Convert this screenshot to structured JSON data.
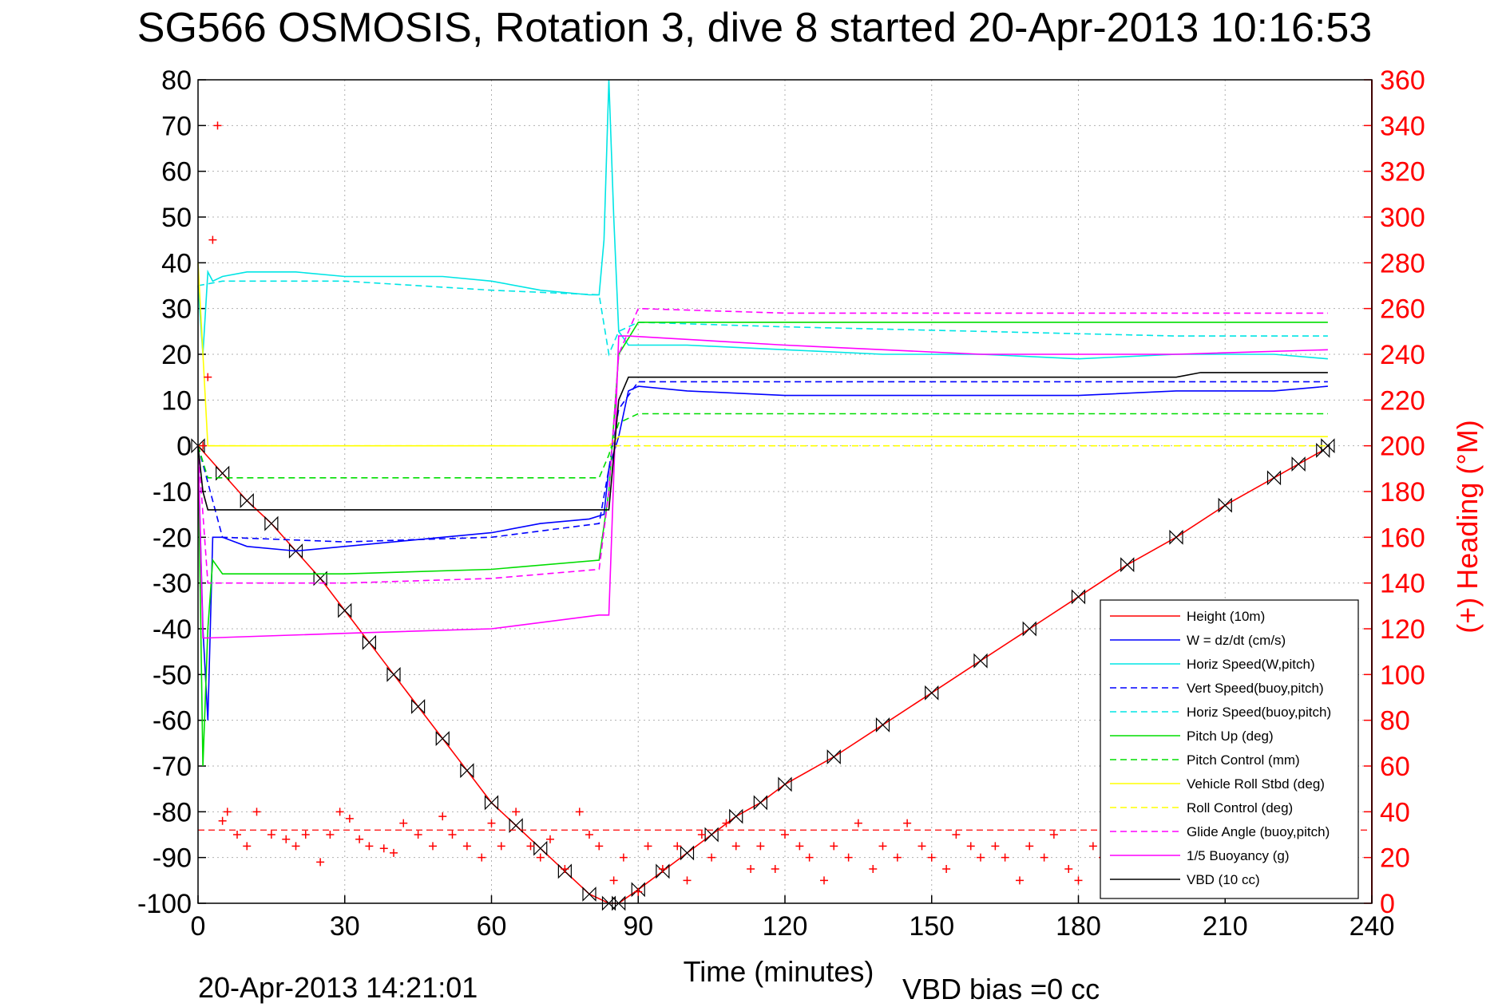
{
  "chart_data": {
    "type": "line",
    "title": "SG566 OSMOSIS, Rotation 3, dive 8 started 20-Apr-2013 10:16:53",
    "xlabel": "Time (minutes)",
    "ylabel_right": "(+) Heading (°M)",
    "xlim": [
      0,
      240
    ],
    "ylim": [
      -100,
      80
    ],
    "ylim_right": [
      0,
      360
    ],
    "x_ticks": [
      "0",
      "30",
      "60",
      "90",
      "120",
      "150",
      "180",
      "210",
      "240"
    ],
    "y_ticks": [
      "80",
      "70",
      "60",
      "50",
      "40",
      "30",
      "20",
      "10",
      "0",
      "-10",
      "-20",
      "-30",
      "-40",
      "-50",
      "-60",
      "-70",
      "-80",
      "-90",
      "-100"
    ],
    "y_ticks_right": [
      "360",
      "340",
      "320",
      "300",
      "280",
      "260",
      "240",
      "220",
      "200",
      "180",
      "160",
      "140",
      "120",
      "100",
      "80",
      "60",
      "40",
      "20",
      "0"
    ],
    "grid": true,
    "legend_position": "bottom-right",
    "series": [
      {
        "name": "Height (10m)",
        "color": "#ff0000",
        "style": "solid",
        "marker": "triangles",
        "x": [
          0,
          5,
          10,
          15,
          20,
          25,
          30,
          35,
          40,
          45,
          50,
          55,
          60,
          65,
          70,
          75,
          80,
          84,
          86,
          90,
          95,
          100,
          105,
          110,
          115,
          120,
          130,
          140,
          150,
          160,
          170,
          180,
          190,
          200,
          210,
          220,
          225,
          230,
          231
        ],
        "values": [
          0,
          -6,
          -12,
          -17,
          -23,
          -29,
          -36,
          -43,
          -50,
          -57,
          -64,
          -71,
          -78,
          -83,
          -88,
          -93,
          -98,
          -100,
          -100,
          -97,
          -93,
          -89,
          -85,
          -81,
          -78,
          -74,
          -68,
          -61,
          -54,
          -47,
          -40,
          -33,
          -26,
          -20,
          -13,
          -7,
          -4,
          -1,
          0
        ]
      },
      {
        "name": "W = dz/dt (cm/s)",
        "color": "#0000ff",
        "style": "solid",
        "x": [
          0,
          1,
          2,
          3,
          5,
          10,
          20,
          30,
          40,
          50,
          60,
          70,
          80,
          83,
          84,
          86,
          88,
          90,
          100,
          120,
          140,
          160,
          180,
          200,
          220,
          231
        ],
        "values": [
          0,
          -40,
          -60,
          -20,
          -20,
          -22,
          -23,
          -22,
          -21,
          -20,
          -19,
          -17,
          -16,
          -15,
          -5,
          2,
          12,
          13,
          12,
          11,
          11,
          11,
          11,
          12,
          12,
          13
        ]
      },
      {
        "name": "Horiz Speed(W,pitch)",
        "color": "#00e5e5",
        "style": "solid",
        "x": [
          0,
          1,
          2,
          3,
          5,
          10,
          20,
          30,
          40,
          50,
          60,
          70,
          80,
          82,
          83,
          84,
          85,
          86,
          88,
          90,
          100,
          120,
          140,
          160,
          180,
          200,
          220,
          231
        ],
        "values": [
          35,
          20,
          38,
          36,
          37,
          38,
          38,
          37,
          37,
          37,
          36,
          34,
          33,
          33,
          45,
          80,
          50,
          25,
          22,
          22,
          22,
          21,
          20,
          20,
          19,
          20,
          20,
          19
        ]
      },
      {
        "name": "Vert Speed(buoy,pitch)",
        "color": "#0000ff",
        "style": "dashed",
        "x": [
          0,
          5,
          30,
          60,
          82,
          84,
          86,
          90,
          120,
          160,
          200,
          231
        ],
        "values": [
          0,
          -20,
          -21,
          -20,
          -17,
          -5,
          8,
          14,
          14,
          14,
          14,
          14
        ]
      },
      {
        "name": "Horiz Speed(buoy,pitch)",
        "color": "#00e5e5",
        "style": "dashed",
        "x": [
          0,
          5,
          30,
          60,
          82,
          84,
          86,
          90,
          120,
          160,
          200,
          231
        ],
        "values": [
          35,
          36,
          36,
          34,
          33,
          20,
          25,
          27,
          26,
          25,
          24,
          24
        ]
      },
      {
        "name": "Pitch Up (deg)",
        "color": "#00dd00",
        "style": "solid",
        "x": [
          0,
          1,
          2,
          3,
          5,
          10,
          30,
          60,
          82,
          84,
          86,
          90,
          120,
          160,
          200,
          231
        ],
        "values": [
          0,
          -70,
          -40,
          -25,
          -28,
          -28,
          -28,
          -27,
          -25,
          -10,
          20,
          27,
          27,
          27,
          27,
          27
        ]
      },
      {
        "name": "Pitch Control (mm)",
        "color": "#00dd00",
        "style": "dashed",
        "x": [
          0,
          2,
          5,
          30,
          60,
          82,
          84,
          86,
          90,
          120,
          160,
          200,
          231
        ],
        "values": [
          0,
          -7,
          -7,
          -7,
          -7,
          -7,
          -2,
          5,
          7,
          7,
          7,
          7,
          7
        ]
      },
      {
        "name": "Vehicle Roll Stbd (deg)",
        "color": "#ffff00",
        "style": "solid",
        "x": [
          0,
          2,
          4,
          20,
          40,
          60,
          80,
          84,
          86,
          90,
          120,
          160,
          200,
          231
        ],
        "values": [
          40,
          0,
          0,
          0,
          0,
          0,
          0,
          0,
          2,
          2,
          2,
          2,
          2,
          2
        ]
      },
      {
        "name": "Roll Control (deg)",
        "color": "#ffff00",
        "style": "dashed",
        "x": [
          0,
          2,
          82,
          84,
          231
        ],
        "values": [
          0,
          0,
          0,
          0,
          0
        ]
      },
      {
        "name": "Glide Angle (buoy,pitch)",
        "color": "#ff00ff",
        "style": "dashed",
        "x": [
          0,
          2,
          5,
          30,
          60,
          82,
          84,
          86,
          90,
          120,
          160,
          200,
          231
        ],
        "values": [
          0,
          -30,
          -30,
          -30,
          -29,
          -27,
          -10,
          20,
          30,
          29,
          29,
          29,
          29
        ]
      },
      {
        "name": "1/5 Buoyancy (g)",
        "color": "#ff00ff",
        "style": "solid",
        "x": [
          0,
          1,
          2,
          30,
          60,
          82,
          84,
          86,
          88,
          120,
          160,
          200,
          231
        ],
        "values": [
          0,
          -42,
          -42,
          -41,
          -40,
          -37,
          -37,
          24,
          24,
          22,
          20,
          20,
          21
        ]
      },
      {
        "name": "VBD (10 cc)",
        "color": "#000000",
        "style": "solid",
        "x": [
          0,
          1,
          2,
          82,
          84,
          86,
          88,
          120,
          160,
          200,
          205,
          231
        ],
        "values": [
          0,
          -10,
          -14,
          -14,
          -14,
          10,
          15,
          15,
          15,
          15,
          16,
          16
        ]
      }
    ],
    "heading": {
      "axis": "right",
      "color": "#ff0000",
      "marker": "+",
      "x": [
        1,
        2,
        3,
        4,
        5,
        6,
        8,
        10,
        12,
        15,
        18,
        20,
        22,
        25,
        27,
        29,
        31,
        33,
        35,
        38,
        40,
        42,
        45,
        48,
        50,
        52,
        55,
        58,
        60,
        62,
        65,
        68,
        70,
        72,
        75,
        78,
        80,
        82,
        85,
        87,
        90,
        92,
        95,
        98,
        100,
        103,
        105,
        108,
        110,
        113,
        115,
        118,
        120,
        123,
        125,
        128,
        130,
        133,
        135,
        138,
        140,
        143,
        145,
        148,
        150,
        153,
        155,
        158,
        160,
        163,
        165,
        168,
        170,
        173,
        175,
        178,
        180,
        183,
        185,
        188,
        190,
        193,
        195,
        198,
        200,
        203,
        205,
        208,
        210,
        213,
        215,
        218,
        220,
        223,
        225,
        228,
        230
      ],
      "values": [
        200,
        230,
        290,
        340,
        36,
        40,
        30,
        25,
        40,
        30,
        28,
        25,
        30,
        18,
        30,
        40,
        37,
        28,
        25,
        24,
        22,
        35,
        30,
        25,
        38,
        30,
        25,
        20,
        35,
        25,
        40,
        25,
        20,
        28,
        15,
        40,
        30,
        25,
        10,
        20,
        5,
        25,
        15,
        25,
        10,
        30,
        20,
        35,
        25,
        15,
        25,
        15,
        30,
        25,
        20,
        10,
        25,
        20,
        35,
        15,
        25,
        20,
        35,
        25,
        20,
        15,
        30,
        25,
        20,
        25,
        20,
        10,
        25,
        20,
        30,
        15,
        10,
        25,
        20,
        15,
        25,
        10,
        30,
        15,
        20,
        10,
        25,
        15,
        30,
        20,
        10,
        25,
        20,
        15,
        30,
        10,
        20
      ]
    },
    "heading_reference": {
      "axis": "right",
      "color": "#ff0000",
      "style": "dashed",
      "value": 32
    }
  },
  "footer": {
    "timestamp": "20-Apr-2013 14:21:01",
    "vbd_bias": "VBD bias =0 cc"
  }
}
